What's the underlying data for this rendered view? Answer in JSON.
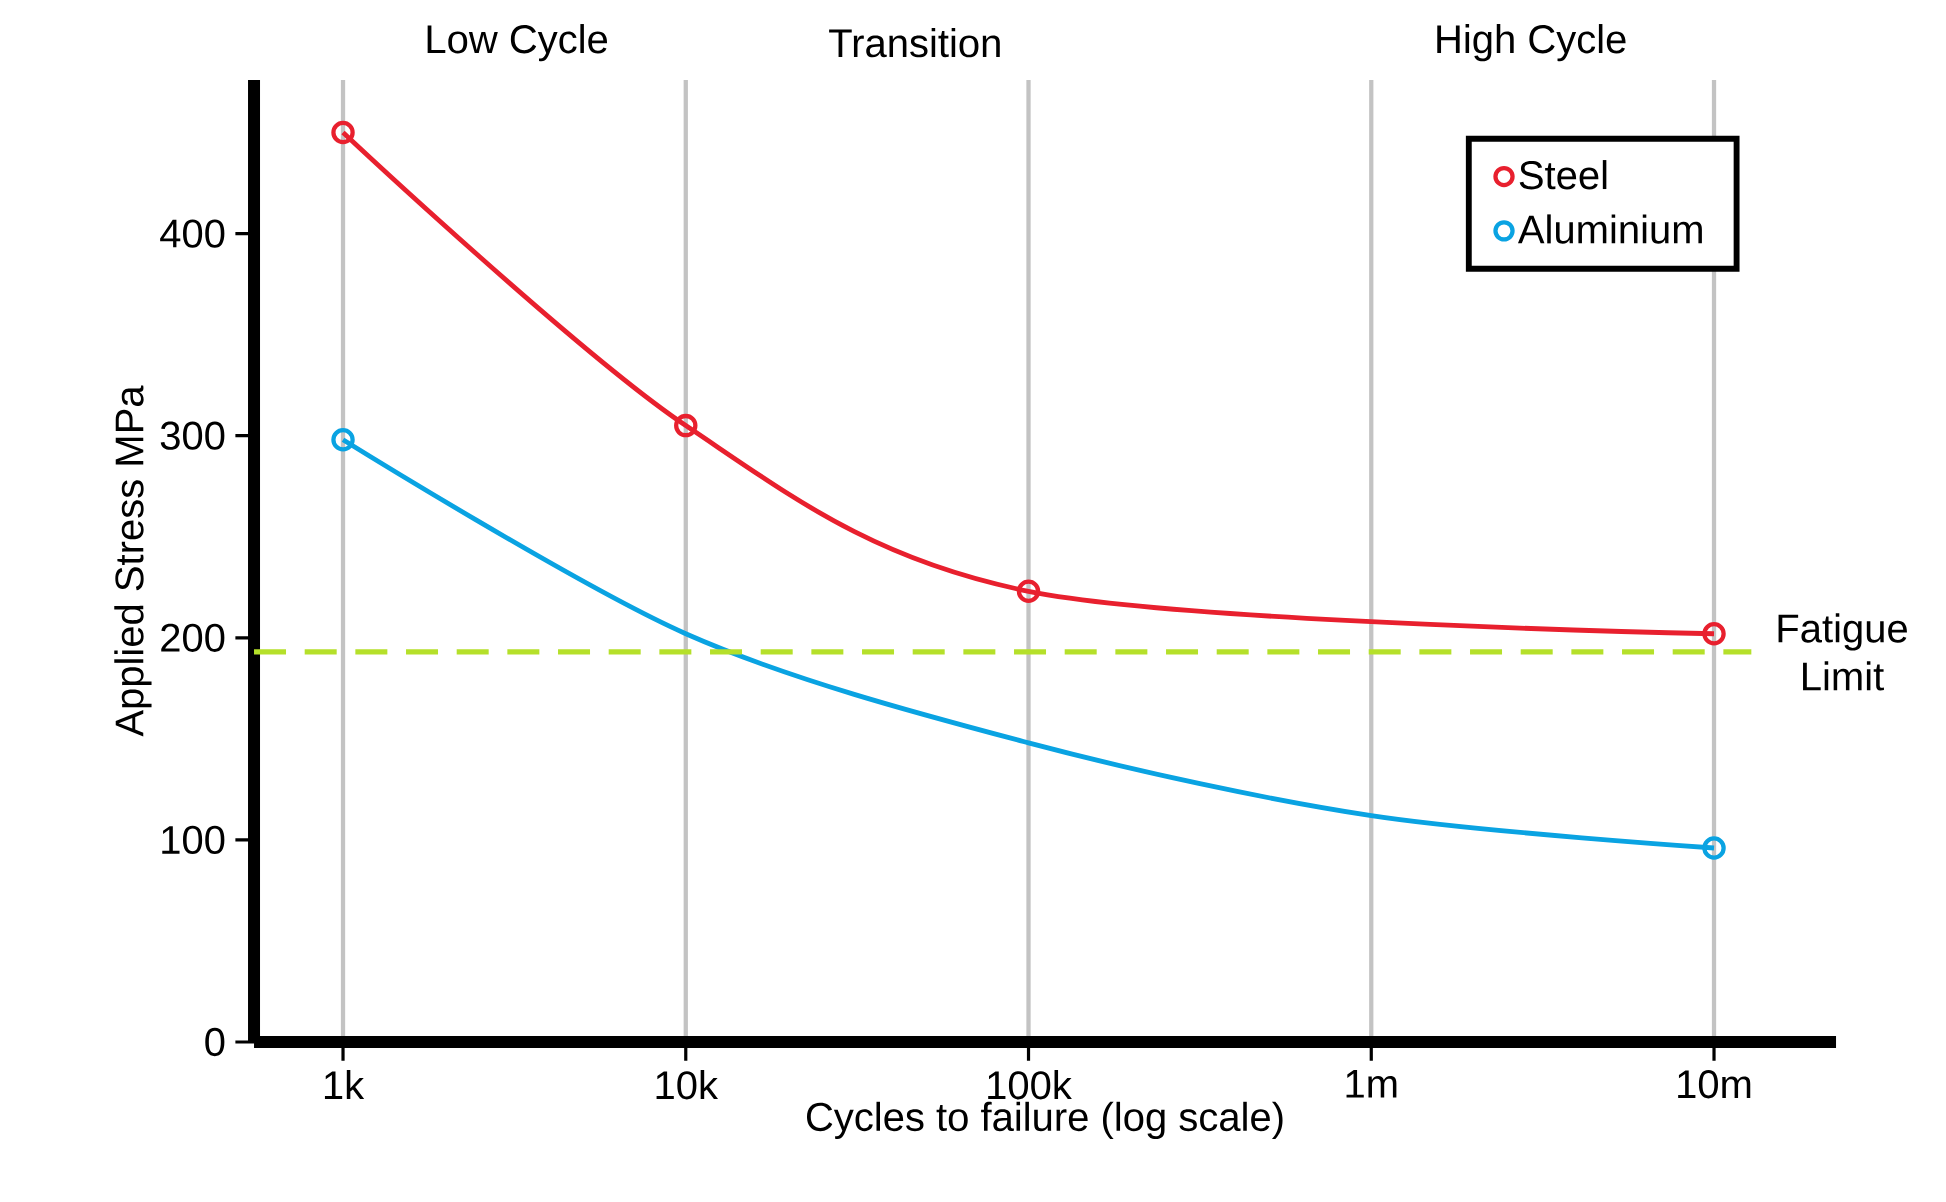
{
  "chart_data": {
    "type": "line",
    "xlabel": "Cycles to failure (log scale)",
    "ylabel": "Applied Stress MPa",
    "log": "x",
    "xlim": [
      550,
      22700000
    ],
    "ylim": [
      0,
      476
    ],
    "xticks": [
      {
        "value": 1000,
        "label": "1k"
      },
      {
        "value": 10000,
        "label": "10k"
      },
      {
        "value": 100000,
        "label": "100k"
      },
      {
        "value": 1000000,
        "label": "1m"
      },
      {
        "value": 10000000,
        "label": "10m"
      }
    ],
    "yticks": [
      0,
      100,
      200,
      300,
      400
    ],
    "grid": "x",
    "legend": "top right",
    "marker": "circle",
    "series": [
      {
        "name": "Steel",
        "color": "#e8202e",
        "x": [
          1000,
          10000,
          100000,
          10000000
        ],
        "values": [
          450,
          305,
          223,
          202
        ]
      },
      {
        "name": "Aluminium",
        "type": "scatter",
        "color": "#0aa3e2",
        "x": [
          1000,
          10000000
        ],
        "values": [
          298,
          96
        ]
      },
      {
        "color": "#0aa3e2",
        "marker": "none",
        "x": [
          1000,
          10000,
          100000,
          1000000,
          10000000
        ],
        "values": [
          298,
          202,
          148,
          112,
          96
        ]
      }
    ],
    "ref_lines": [
      {
        "axis": "y",
        "value": 193,
        "label": "Fatigue Limit",
        "color": "#b5e02a",
        "line_style": "dashed"
      }
    ],
    "annotations": [
      "Low Cycle",
      "Transition",
      "High Cycle"
    ]
  }
}
